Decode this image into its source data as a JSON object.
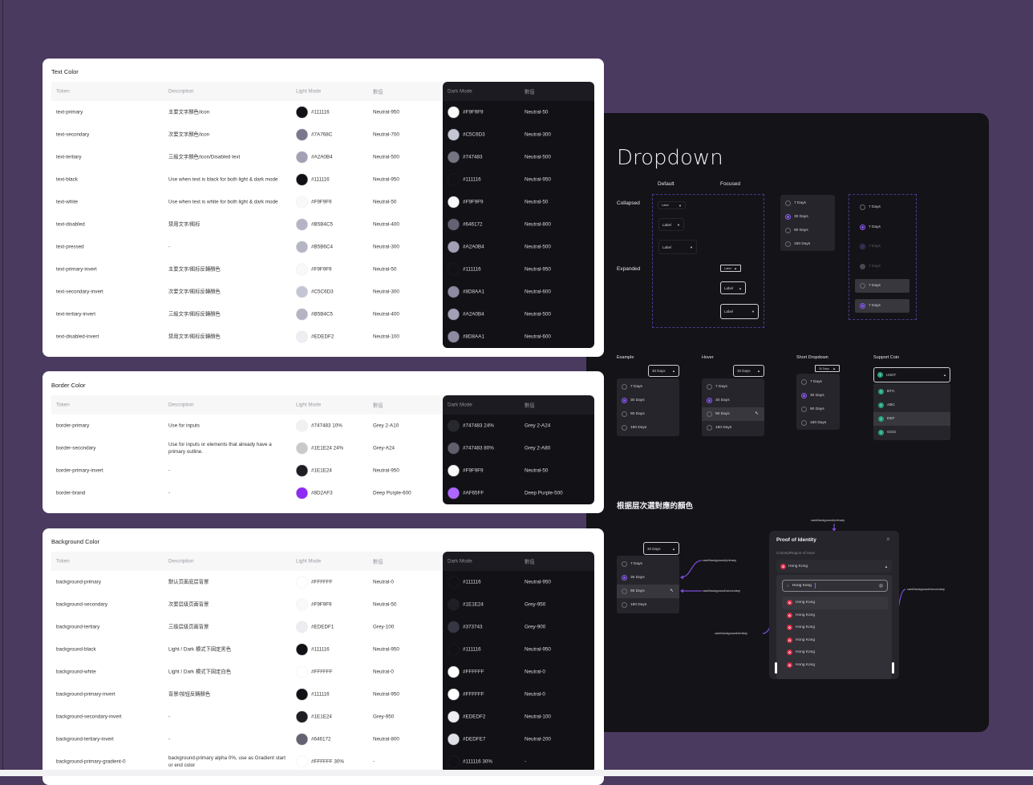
{
  "headers": {
    "token": "Token",
    "description": "Description",
    "light": "Light Mode",
    "light_value": "數值",
    "dark": "Dark Mode",
    "dark_value": "數值"
  },
  "tables": [
    {
      "title": "Text Color",
      "rows": [
        {
          "token": "text-primary",
          "description": "主要文字顏色/icon",
          "light_hex": "#111116",
          "light_value": "Neutral-950",
          "dark_hex": "#F9F9F9",
          "dark_value": "Neutral-50"
        },
        {
          "token": "text-secondary",
          "description": "次要文字顏色/icon",
          "light_hex": "#7A768C",
          "light_value": "Neutral-700",
          "dark_hex": "#C5C6D3",
          "dark_value": "Neutral-300"
        },
        {
          "token": "text-tertiary",
          "description": "三級文字顏色/icon/Disabled text",
          "light_hex": "#A2A0B4",
          "light_value": "Neutral-500",
          "dark_hex": "#747483",
          "dark_value": "Neutral-500"
        },
        {
          "token": "text-black",
          "description": "Use when text is black for both light & dark mode",
          "light_hex": "#111116",
          "light_value": "Neutral-950",
          "dark_hex": "#111116",
          "dark_value": "Neutral-950"
        },
        {
          "token": "text-white",
          "description": "Use when text is white for both light & dark mode",
          "light_hex": "#F9F9F9",
          "light_value": "Neutral-50",
          "dark_hex": "#F9F9F9",
          "dark_value": "Neutral-50"
        },
        {
          "token": "text-disabled",
          "description": "禁用文字/图标",
          "light_hex": "#B5B4C5",
          "light_value": "Neutral-400",
          "dark_hex": "#646172",
          "dark_value": "Neutral-800"
        },
        {
          "token": "text-pressed",
          "description": "-",
          "light_hex": "#B5B6C4",
          "light_value": "Neutral-300",
          "dark_hex": "#A2A0B4",
          "dark_value": "Neutral-500"
        },
        {
          "token": "text-primary-invert",
          "description": "主要文字/图标反轉顏色",
          "light_hex": "#F9F9F9",
          "light_value": "Neutral-50",
          "dark_hex": "#111116",
          "dark_value": "Neutral-950"
        },
        {
          "token": "text-secondary-invert",
          "description": "次要文字/图标反轉顏色",
          "light_hex": "#C5C6D3",
          "light_value": "Neutral-300",
          "dark_hex": "#8D8AA1",
          "dark_value": "Neutral-600"
        },
        {
          "token": "text-tertiary-invert",
          "description": "三級文字/图标反轉顏色",
          "light_hex": "#B5B4C5",
          "light_value": "Neutral-400",
          "dark_hex": "#A2A0B4",
          "dark_value": "Neutral-500"
        },
        {
          "token": "text-disabled-invert",
          "description": "禁用文字/图标反轉顏色",
          "light_hex": "#EDEDF2",
          "light_value": "Neutral-100",
          "dark_hex": "#8D8AA1",
          "dark_value": "Neutral-600"
        }
      ]
    },
    {
      "title": "Border Color",
      "rows": [
        {
          "token": "border-primary",
          "description": "Use for inputs",
          "light_hex": "#747483  10%",
          "light_value": "Grey 2-A10",
          "dark_hex": "#747483  24%",
          "dark_value": "Grey 2-A24"
        },
        {
          "token": "border-secondary",
          "description": "Use for inputs or elements that already have a primary outline.",
          "light_hex": "#1E1E24  24%",
          "light_value": "Grey-A24",
          "dark_hex": "#747483  80%",
          "dark_value": "Grey 2-A80"
        },
        {
          "token": "border-primary-invert",
          "description": "-",
          "light_hex": "#1E1E24",
          "light_value": "Neutral-950",
          "dark_hex": "#F9F9F9",
          "dark_value": "Neutral-50"
        },
        {
          "token": "border-brand",
          "description": "-",
          "light_hex": "#8D2AF3",
          "light_value": "Deep Purple-600",
          "dark_hex": "#AF65FF",
          "dark_value": "Deep Purple-500"
        }
      ]
    },
    {
      "title": "Background Color",
      "rows": [
        {
          "token": "background-primary",
          "description": "默认页面底层背景",
          "light_hex": "#FFFFFF",
          "light_value": "Neutral-0",
          "dark_hex": "#111116",
          "dark_value": "Neutral-950"
        },
        {
          "token": "background-secondary",
          "description": "次要层级页面背景",
          "light_hex": "#F9F9F9",
          "light_value": "Neutral-50",
          "dark_hex": "#1E1E24",
          "dark_value": "Grey-950"
        },
        {
          "token": "background-tertiary",
          "description": "三级层级页面背景",
          "light_hex": "#EDEDF1",
          "light_value": "Grey-100",
          "dark_hex": "#373743",
          "dark_value": "Grey-900"
        },
        {
          "token": "background-black",
          "description": "Light / Dark 模式下固定黑色",
          "light_hex": "#111116",
          "light_value": "Neutral-950",
          "dark_hex": "#111116",
          "dark_value": "Neutral-950"
        },
        {
          "token": "background-white",
          "description": "Light / Dark 模式下固定白色",
          "light_hex": "#FFFFFF",
          "light_value": "Neutral-0",
          "dark_hex": "#FFFFFF",
          "dark_value": "Neutral-0"
        },
        {
          "token": "background-primary-invert",
          "description": "背景/按钮反轉顏色",
          "light_hex": "#111116",
          "light_value": "Neutral-950",
          "dark_hex": "#FFFFFF",
          "dark_value": "Neutral-0"
        },
        {
          "token": "background-secondary-invert",
          "description": "-",
          "light_hex": "#1E1E24",
          "light_value": "Grey-950",
          "dark_hex": "#EDEDF2",
          "dark_value": "Neutral-100"
        },
        {
          "token": "background-tertiary-invert",
          "description": "-",
          "light_hex": "#646172",
          "light_value": "Neutral-800",
          "dark_hex": "#DEDFE7",
          "dark_value": "Neutral-200"
        },
        {
          "token": "background-primary-gradient-0",
          "description": "background-primary alpha 0%, use as Gradient start or end color",
          "light_hex": "#FFFFFF  30%",
          "light_value": "-",
          "dark_hex": "#111116  30%",
          "dark_value": "-"
        }
      ]
    }
  ],
  "dropdown": {
    "title": "Dropdown",
    "col_default": "Default",
    "col_focused": "Focused",
    "row_collapsed": "Collapsed",
    "row_expanded": "Expanded",
    "trigger_label": "Label",
    "options": [
      "7 Days",
      "30 Days",
      "90 Days",
      "180 Days"
    ],
    "selected_index": 1,
    "radio_states_label": "7 Days",
    "example_label": "Example",
    "hover_label": "Hover",
    "short_label": "Short Dropdown",
    "coin_label": "Support Coin",
    "value": "30 Days",
    "coin_value": "USDT",
    "coins": [
      "BTC",
      "ABC",
      "DEF",
      "GGG"
    ],
    "coin_highlight_index": 2,
    "hover_index": 2
  },
  "hierarchy": {
    "title": "根据层次選對應的顏色",
    "annotations": {
      "primary": "card/background/primary",
      "secondary": "card/background/secondary",
      "tertiary": "card/background/tertiary"
    },
    "modal": {
      "title": "Proof of Identity",
      "field_label": "Country/Region of issue",
      "selected": "Hong Kong",
      "search_value": "Hong Kong",
      "options": [
        "Hong Kong",
        "Hong Kong",
        "Hong Kong",
        "Hong Kong",
        "Hong Kong",
        "Hong Kong"
      ],
      "hover_index": 0
    }
  },
  "colors": {
    "accent": "#8D5CF6",
    "page_background": "#4B3A5F",
    "dark_panel": "#141318",
    "annotation_arrow": "#7B4DD6"
  }
}
